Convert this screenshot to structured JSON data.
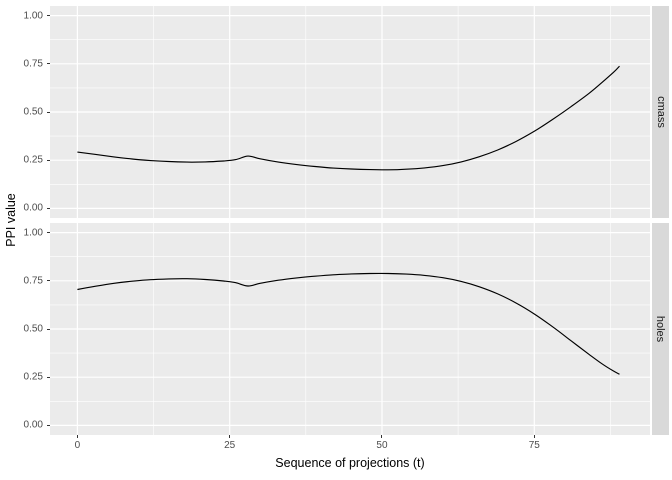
{
  "chart_data": {
    "type": "line",
    "title": "",
    "xlabel": "Sequence of projections (t)",
    "ylabel": "PPI value",
    "x_ticks": [
      0,
      25,
      50,
      75
    ],
    "x_minor": [
      12.5,
      37.5,
      62.5,
      87.5
    ],
    "y_ticks": [
      0.0,
      0.25,
      0.5,
      0.75,
      1.0
    ],
    "y_tick_labels": [
      "0.00",
      "0.25",
      "0.50",
      "0.75",
      "1.00"
    ],
    "y_minor": [
      0.125,
      0.375,
      0.625,
      0.875
    ],
    "xlim": [
      -4.5,
      94
    ],
    "ylim": [
      -0.05,
      1.05
    ],
    "legend": "none",
    "grid": true,
    "facet_side": "right",
    "facets": [
      {
        "label": "cmass",
        "x": [
          0,
          3,
          6,
          9,
          12,
          15,
          18,
          21,
          24,
          26,
          28,
          30,
          33,
          36,
          39,
          42,
          45,
          48,
          51,
          54,
          57,
          60,
          63,
          66,
          69,
          72,
          75,
          78,
          81,
          84,
          86,
          88,
          89
        ],
        "y": [
          0.292,
          0.28,
          0.267,
          0.256,
          0.248,
          0.243,
          0.24,
          0.241,
          0.246,
          0.253,
          0.271,
          0.257,
          0.24,
          0.227,
          0.217,
          0.209,
          0.204,
          0.201,
          0.2,
          0.203,
          0.21,
          0.222,
          0.241,
          0.268,
          0.303,
          0.347,
          0.4,
          0.461,
          0.527,
          0.597,
          0.65,
          0.706,
          0.738
        ]
      },
      {
        "label": "holes",
        "x": [
          0,
          3,
          6,
          9,
          12,
          15,
          18,
          21,
          24,
          26,
          28,
          30,
          33,
          36,
          39,
          42,
          45,
          48,
          51,
          54,
          57,
          60,
          63,
          66,
          69,
          72,
          75,
          78,
          81,
          84,
          86,
          88,
          89
        ],
        "y": [
          0.705,
          0.722,
          0.737,
          0.748,
          0.756,
          0.76,
          0.761,
          0.757,
          0.749,
          0.74,
          0.723,
          0.737,
          0.753,
          0.765,
          0.774,
          0.781,
          0.786,
          0.788,
          0.788,
          0.785,
          0.778,
          0.766,
          0.747,
          0.719,
          0.682,
          0.635,
          0.578,
          0.512,
          0.44,
          0.368,
          0.322,
          0.282,
          0.265
        ]
      }
    ]
  },
  "theme": {
    "panel_bg": "#EBEBEB",
    "grid_color": "#FFFFFF",
    "strip_bg": "#D9D9D9",
    "strip_text": "#1A1A1A",
    "tick_text": "#4D4D4D",
    "tick_mark": "#333333",
    "line_color": "#000000",
    "bg": "#FFFFFF"
  }
}
